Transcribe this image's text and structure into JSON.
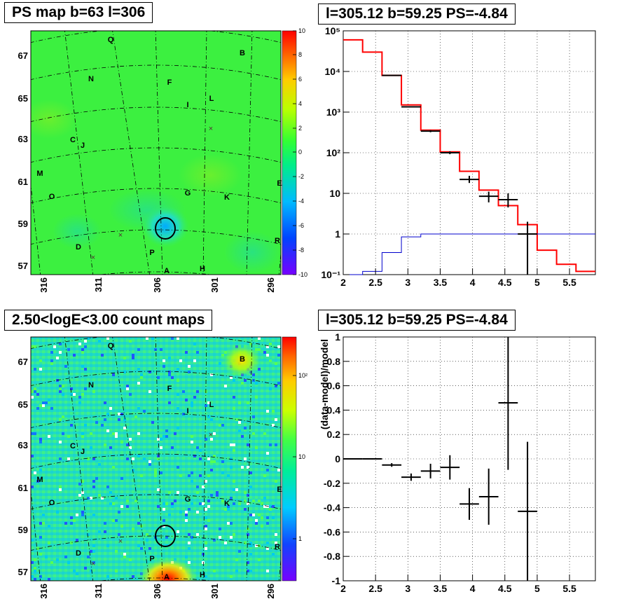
{
  "titles": {
    "tl": "PS map b=63 l=306",
    "tr": "l=305.12 b=59.25 PS=-4.84",
    "bl": "2.50<logE<3.00 count maps",
    "br": "l=305.12 b=59.25 PS=-4.84"
  },
  "map_axes": {
    "lat_labels": [
      "67",
      "65",
      "63",
      "61",
      "59",
      "57"
    ],
    "lon_labels": [
      "316",
      "311",
      "306",
      "301",
      "296"
    ]
  },
  "sources": [
    "Q",
    "B",
    "N",
    "F",
    "L",
    "I",
    "C",
    "J",
    "M",
    "O",
    "G",
    "K",
    "E",
    "D",
    "P",
    "R",
    "A",
    "H"
  ],
  "colorbars": {
    "ps": [
      "10",
      "8",
      "6",
      "4",
      "2",
      "0",
      "-2",
      "-4",
      "-6",
      "-8",
      "-10"
    ],
    "counts": [
      "10²",
      "10",
      "1"
    ]
  },
  "chart_data": [
    {
      "type": "heatmap",
      "title": "PS map b=63 l=306",
      "xlabel": "",
      "ylabel": "",
      "x_ticks": [
        "316",
        "311",
        "306",
        "301",
        "296"
      ],
      "y_ticks": [
        "67",
        "65",
        "63",
        "61",
        "59",
        "57"
      ],
      "zlim": [
        -10,
        10
      ],
      "markers": [
        "Q",
        "B",
        "N",
        "F",
        "L",
        "I",
        "C",
        "J",
        "M",
        "O",
        "G",
        "K",
        "E",
        "D",
        "P",
        "R",
        "A",
        "H"
      ]
    },
    {
      "type": "line",
      "title": "l=305.12 b=59.25 PS=-4.84",
      "xlabel": "",
      "ylabel": "",
      "xlim": [
        2,
        5.9
      ],
      "ylim": [
        0.1,
        100000
      ],
      "y_scale": "log",
      "x_ticks": [
        "2",
        "2.5",
        "3",
        "3.5",
        "4",
        "4.5",
        "5",
        "5.5"
      ],
      "y_ticks": [
        "10⁻¹",
        "1",
        "10",
        "10²",
        "10³",
        "10⁴",
        "10⁵"
      ],
      "bin_edges": [
        2.0,
        2.3,
        2.6,
        2.9,
        3.2,
        3.5,
        3.8,
        4.1,
        4.4,
        4.7,
        5.0,
        5.3,
        5.6,
        5.9
      ],
      "series": [
        {
          "role": "model",
          "color": "#ff0000",
          "values": [
            60000,
            30000,
            8000,
            1500,
            360,
            105,
            35,
            12,
            5,
            1.7,
            0.4,
            0.18,
            0.12
          ]
        },
        {
          "role": "source",
          "color": "#0000cc",
          "values": [
            0.1,
            0.12,
            0.35,
            0.85,
            1.0,
            1.0,
            1.0,
            1.0,
            1.0,
            1.0,
            1.0,
            1.0,
            1.0
          ]
        },
        {
          "role": "data",
          "color": "#000000",
          "points": [
            {
              "x": 2.75,
              "y": 8000,
              "lo": 7800,
              "hi": 8200
            },
            {
              "x": 3.05,
              "y": 1350,
              "lo": 1300,
              "hi": 1400
            },
            {
              "x": 3.35,
              "y": 340,
              "lo": 320,
              "hi": 360
            },
            {
              "x": 3.65,
              "y": 100,
              "lo": 92,
              "hi": 108
            },
            {
              "x": 3.95,
              "y": 22,
              "lo": 18,
              "hi": 27
            },
            {
              "x": 4.25,
              "y": 8.5,
              "lo": 6,
              "hi": 11
            },
            {
              "x": 4.55,
              "y": 7,
              "lo": 4.5,
              "hi": 10
            },
            {
              "x": 4.85,
              "y": 1,
              "lo": 0.1,
              "hi": 2
            }
          ]
        }
      ]
    },
    {
      "type": "heatmap",
      "title": "2.50<logE<3.00 count maps",
      "xlabel": "",
      "ylabel": "",
      "x_ticks": [
        "316",
        "311",
        "306",
        "301",
        "296"
      ],
      "y_ticks": [
        "67",
        "65",
        "63",
        "61",
        "59",
        "57"
      ],
      "z_scale": "log",
      "markers": [
        "Q",
        "B",
        "N",
        "F",
        "L",
        "I",
        "C",
        "J",
        "M",
        "O",
        "G",
        "K",
        "E",
        "D",
        "P",
        "R",
        "A",
        "H"
      ]
    },
    {
      "type": "scatter",
      "title": "l=305.12 b=59.25 PS=-4.84",
      "xlabel": "",
      "ylabel": "(data-model)/model",
      "xlim": [
        2,
        5.9
      ],
      "ylim": [
        -1,
        1
      ],
      "x_ticks": [
        "2",
        "2.5",
        "3",
        "3.5",
        "4",
        "4.5",
        "5",
        "5.5"
      ],
      "y_ticks": [
        "-1",
        "-0.8",
        "-0.6",
        "-0.4",
        "-0.2",
        "0",
        "0.2",
        "0.4",
        "0.6",
        "0.8",
        "1"
      ],
      "series": [
        {
          "color": "#000000",
          "points": [
            {
              "x": 2.15,
              "y": 0.0,
              "xerr": 0.15,
              "err": 0.004
            },
            {
              "x": 2.45,
              "y": 0.0,
              "xerr": 0.15,
              "err": 0.006
            },
            {
              "x": 2.75,
              "y": -0.05,
              "xerr": 0.15,
              "err": 0.015
            },
            {
              "x": 3.05,
              "y": -0.15,
              "xerr": 0.15,
              "err": 0.03
            },
            {
              "x": 3.35,
              "y": -0.1,
              "xerr": 0.15,
              "err": 0.06
            },
            {
              "x": 3.65,
              "y": -0.07,
              "xerr": 0.15,
              "err": 0.1
            },
            {
              "x": 3.95,
              "y": -0.37,
              "xerr": 0.15,
              "err": 0.13
            },
            {
              "x": 4.25,
              "y": -0.31,
              "xerr": 0.15,
              "err": 0.23
            },
            {
              "x": 4.55,
              "y": 0.46,
              "xerr": 0.15,
              "err": 0.55
            },
            {
              "x": 4.85,
              "y": -0.43,
              "xerr": 0.15,
              "err": 0.57
            }
          ]
        }
      ]
    }
  ]
}
